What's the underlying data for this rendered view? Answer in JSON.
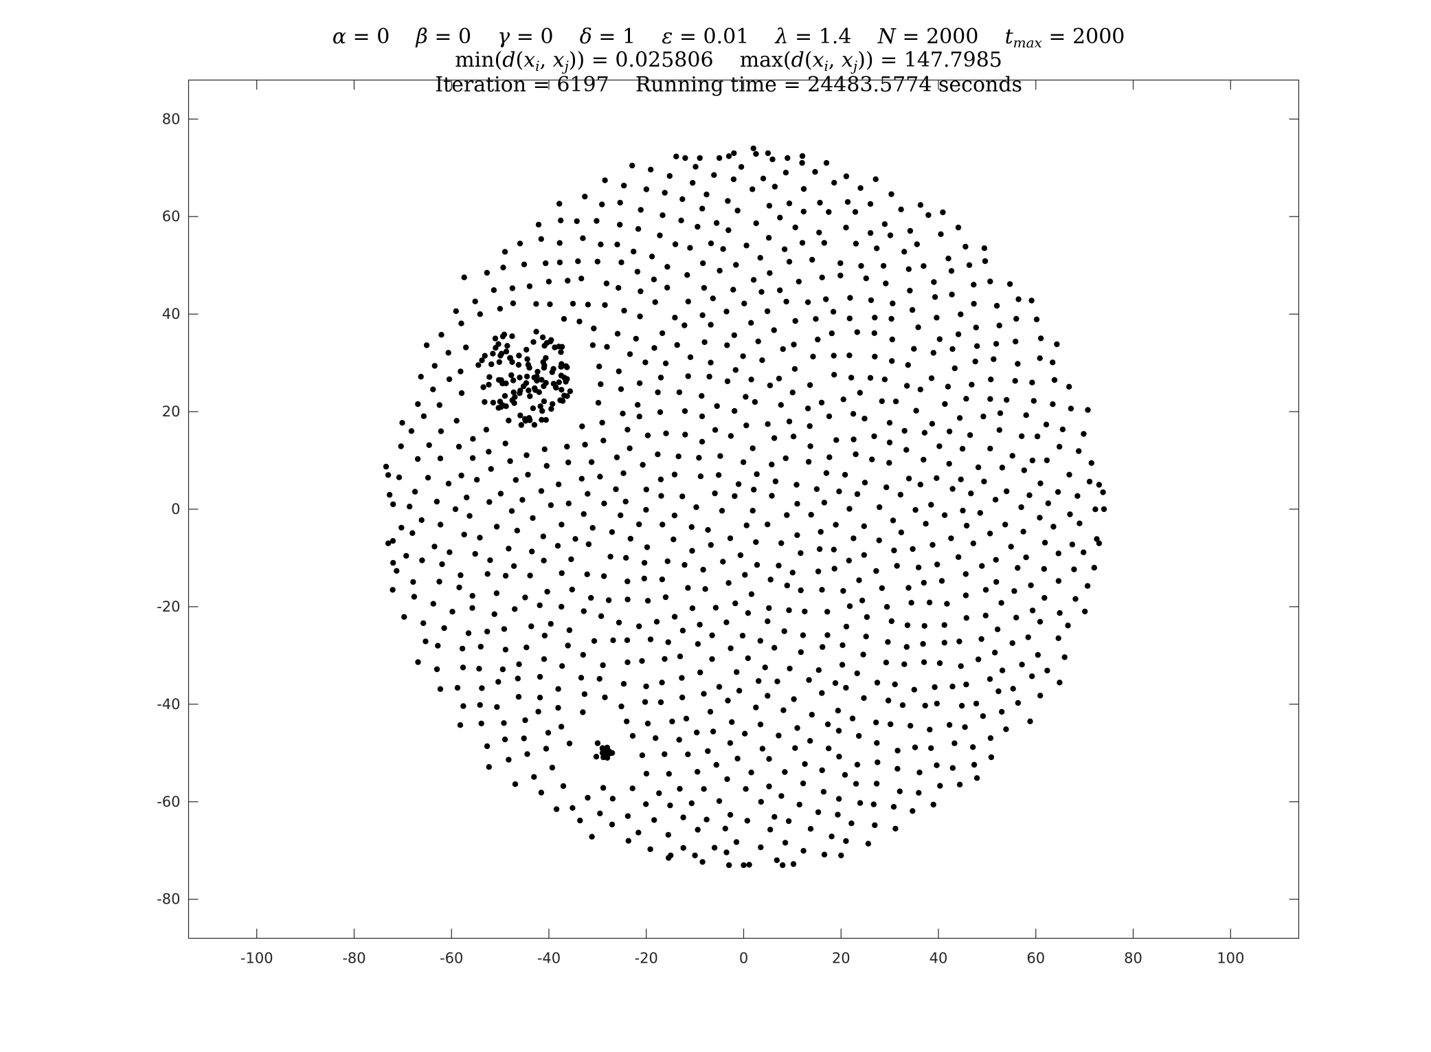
{
  "title": {
    "line1": {
      "alpha": "0",
      "beta": "0",
      "gamma": "0",
      "delta": "1",
      "epsilon": "0.01",
      "lambda": "1.4",
      "N": "2000",
      "tmax": "2000"
    },
    "line2": {
      "min_dist": "0.025806",
      "max_dist": "147.7985"
    },
    "line3": {
      "iteration": "6197",
      "running_time": "24483.5774",
      "unit": "seconds"
    }
  },
  "chart_data": {
    "type": "scatter",
    "title": "α = 0  β = 0  γ = 0  δ = 1  ε = 0.01  λ = 1.4  N = 2000  t_max = 2000 / min(d(x_i, x_j)) = 0.025806  max(d(x_i, x_j)) = 147.7985 / Iteration = 6197  Running time = 24483.5774 seconds",
    "xlabel": "",
    "ylabel": "",
    "xlim": [
      -114,
      114
    ],
    "ylim": [
      -88,
      88
    ],
    "xticks": [
      -100,
      -80,
      -60,
      -40,
      -20,
      0,
      20,
      40,
      60,
      80,
      100
    ],
    "yticks": [
      -80,
      -60,
      -40,
      -20,
      0,
      20,
      40,
      60,
      80
    ],
    "xtick_labels": [
      "-100",
      "-80",
      "-60",
      "-40",
      "-20",
      "0",
      "20",
      "40",
      "60",
      "80",
      "100"
    ],
    "ytick_labels": [
      "-80",
      "-60",
      "-40",
      "-20",
      "0",
      "20",
      "40",
      "60",
      "80"
    ],
    "grid": false,
    "marker_color": "#000000",
    "distribution": {
      "shape": "disk",
      "center": [
        0,
        0
      ],
      "radius": 74,
      "approx_point_count": 1050,
      "clusters": [
        {
          "center": [
            -45,
            27
          ],
          "radius": 10,
          "approx_points": 110
        },
        {
          "center": [
            -29,
            -50
          ],
          "radius": 1.5,
          "approx_points": 10
        }
      ],
      "sample_points": [
        [
          2,
          74
        ],
        [
          5,
          73
        ],
        [
          -2,
          73
        ],
        [
          9,
          72
        ],
        [
          12,
          71
        ],
        [
          17,
          71
        ],
        [
          -5,
          72
        ],
        [
          -9,
          72
        ],
        [
          -12,
          72
        ],
        [
          -73,
          7
        ],
        [
          -72,
          1
        ],
        [
          -73,
          -7
        ],
        [
          -72,
          -11
        ],
        [
          74,
          0
        ],
        [
          73,
          5
        ],
        [
          73,
          -7
        ],
        [
          72,
          -12
        ],
        [
          -51,
          35
        ],
        [
          -48,
          31
        ],
        [
          -44,
          29
        ],
        [
          -46,
          27
        ],
        [
          -43,
          27
        ],
        [
          -41,
          29
        ],
        [
          -42,
          24
        ],
        [
          -47,
          23
        ],
        [
          -30,
          -48
        ],
        [
          -29,
          -50
        ],
        [
          -28,
          -51
        ],
        [
          -29,
          -49
        ],
        [
          -27,
          -50
        ],
        [
          0,
          -73
        ],
        [
          -3,
          -73
        ],
        [
          8,
          -73
        ],
        [
          -10,
          -71
        ],
        [
          -15,
          -71
        ],
        [
          20,
          -71
        ]
      ]
    }
  }
}
